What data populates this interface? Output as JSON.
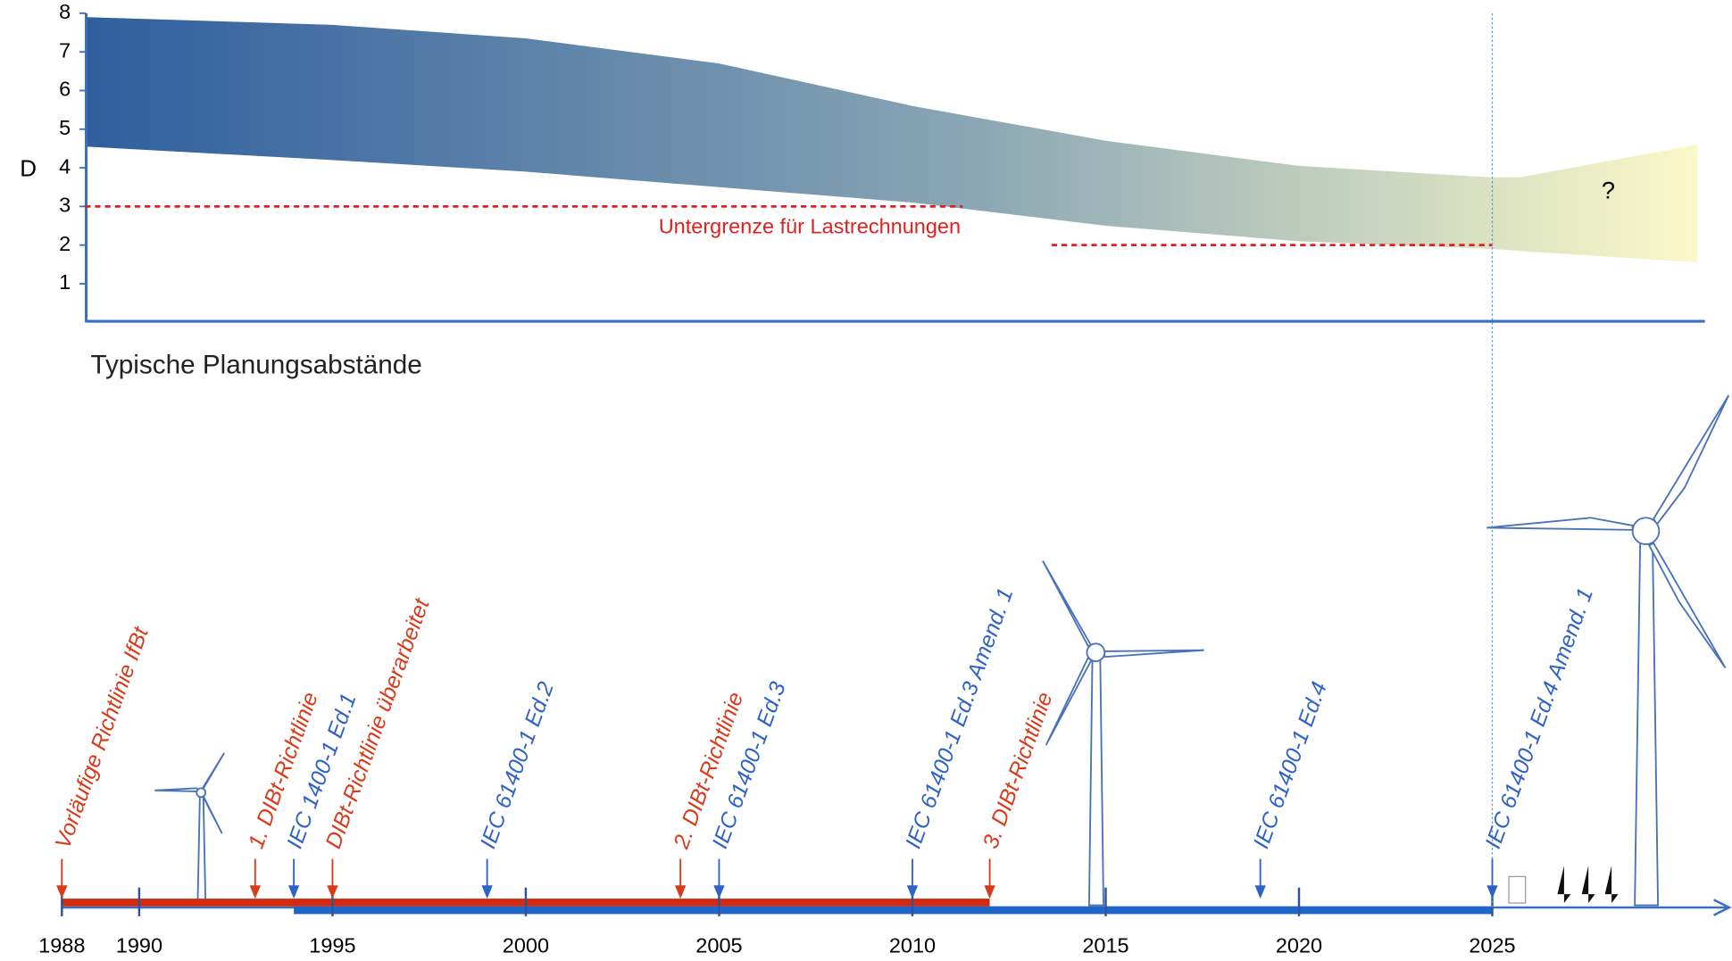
{
  "chart_data": {
    "type": "timeline",
    "y_label": "D",
    "ylim": [
      0,
      8
    ],
    "yticks": [
      1,
      2,
      3,
      4,
      5,
      6,
      7,
      8
    ],
    "xlim": [
      1988,
      2030.5
    ],
    "xticks": [
      1988,
      1990,
      1995,
      2000,
      2005,
      2010,
      2015,
      2020,
      2025
    ],
    "band": {
      "x": [
        1988.6,
        1995,
        2000,
        2005,
        2010,
        2015,
        2020,
        2025,
        2025.7,
        2030.3
      ],
      "upper": [
        7.9,
        7.7,
        7.35,
        6.7,
        5.6,
        4.7,
        4.05,
        3.75,
        3.75,
        4.6
      ],
      "lower": [
        4.55,
        4.2,
        3.9,
        3.5,
        3.1,
        2.5,
        2.1,
        1.9,
        1.85,
        1.55
      ],
      "colors": [
        "#2f5e9e",
        "#8aa6b4",
        "#fbf9c8"
      ]
    },
    "band_label": "?",
    "limits": [
      {
        "value": 3,
        "x": [
          1988.6,
          2011.3
        ]
      },
      {
        "value": 2,
        "x": [
          2013.6,
          2025
        ]
      }
    ],
    "limit_label": "Untergrenze für Lastrechnungen",
    "limit_color": "#e02020",
    "subtitle": "Typische Planungsabstände",
    "events": [
      {
        "year": 1988,
        "label": "Vorläufige Richtlinie IfBt",
        "color": "#d93a1a"
      },
      {
        "year": 1993,
        "label": "1. DIBt-Richtlinie",
        "color": "#d93a1a"
      },
      {
        "year": 1994,
        "label": "IEC 1400-1 Ed.1",
        "color": "#2f62c8"
      },
      {
        "year": 1995,
        "label": "DIBt-Richtlinie überarbeitet",
        "color": "#d93a1a"
      },
      {
        "year": 1999,
        "label": "IEC 61400-1 Ed.2",
        "color": "#2f62c8"
      },
      {
        "year": 2004,
        "label": "2. DIBt-Richtlinie",
        "color": "#d93a1a"
      },
      {
        "year": 2005,
        "label": "IEC 61400-1 Ed.3",
        "color": "#2f62c8"
      },
      {
        "year": 2010,
        "label": "IEC 61400-1 Ed.3 Amend. 1",
        "color": "#2f62c8"
      },
      {
        "year": 2012,
        "label": "3. DIBt-Richtlinie",
        "color": "#d93a1a"
      },
      {
        "year": 2019,
        "label": "IEC 61400-1 Ed.4",
        "color": "#2f62c8"
      },
      {
        "year": 2025,
        "label": "IEC 61400-1 Ed.4 Amend. 1",
        "color": "#2f62c8"
      }
    ],
    "periods": [
      {
        "x": [
          1988,
          2012
        ],
        "color": "#d42a10"
      },
      {
        "x": [
          1994,
          2025
        ],
        "color": "#1f66c8"
      }
    ]
  }
}
